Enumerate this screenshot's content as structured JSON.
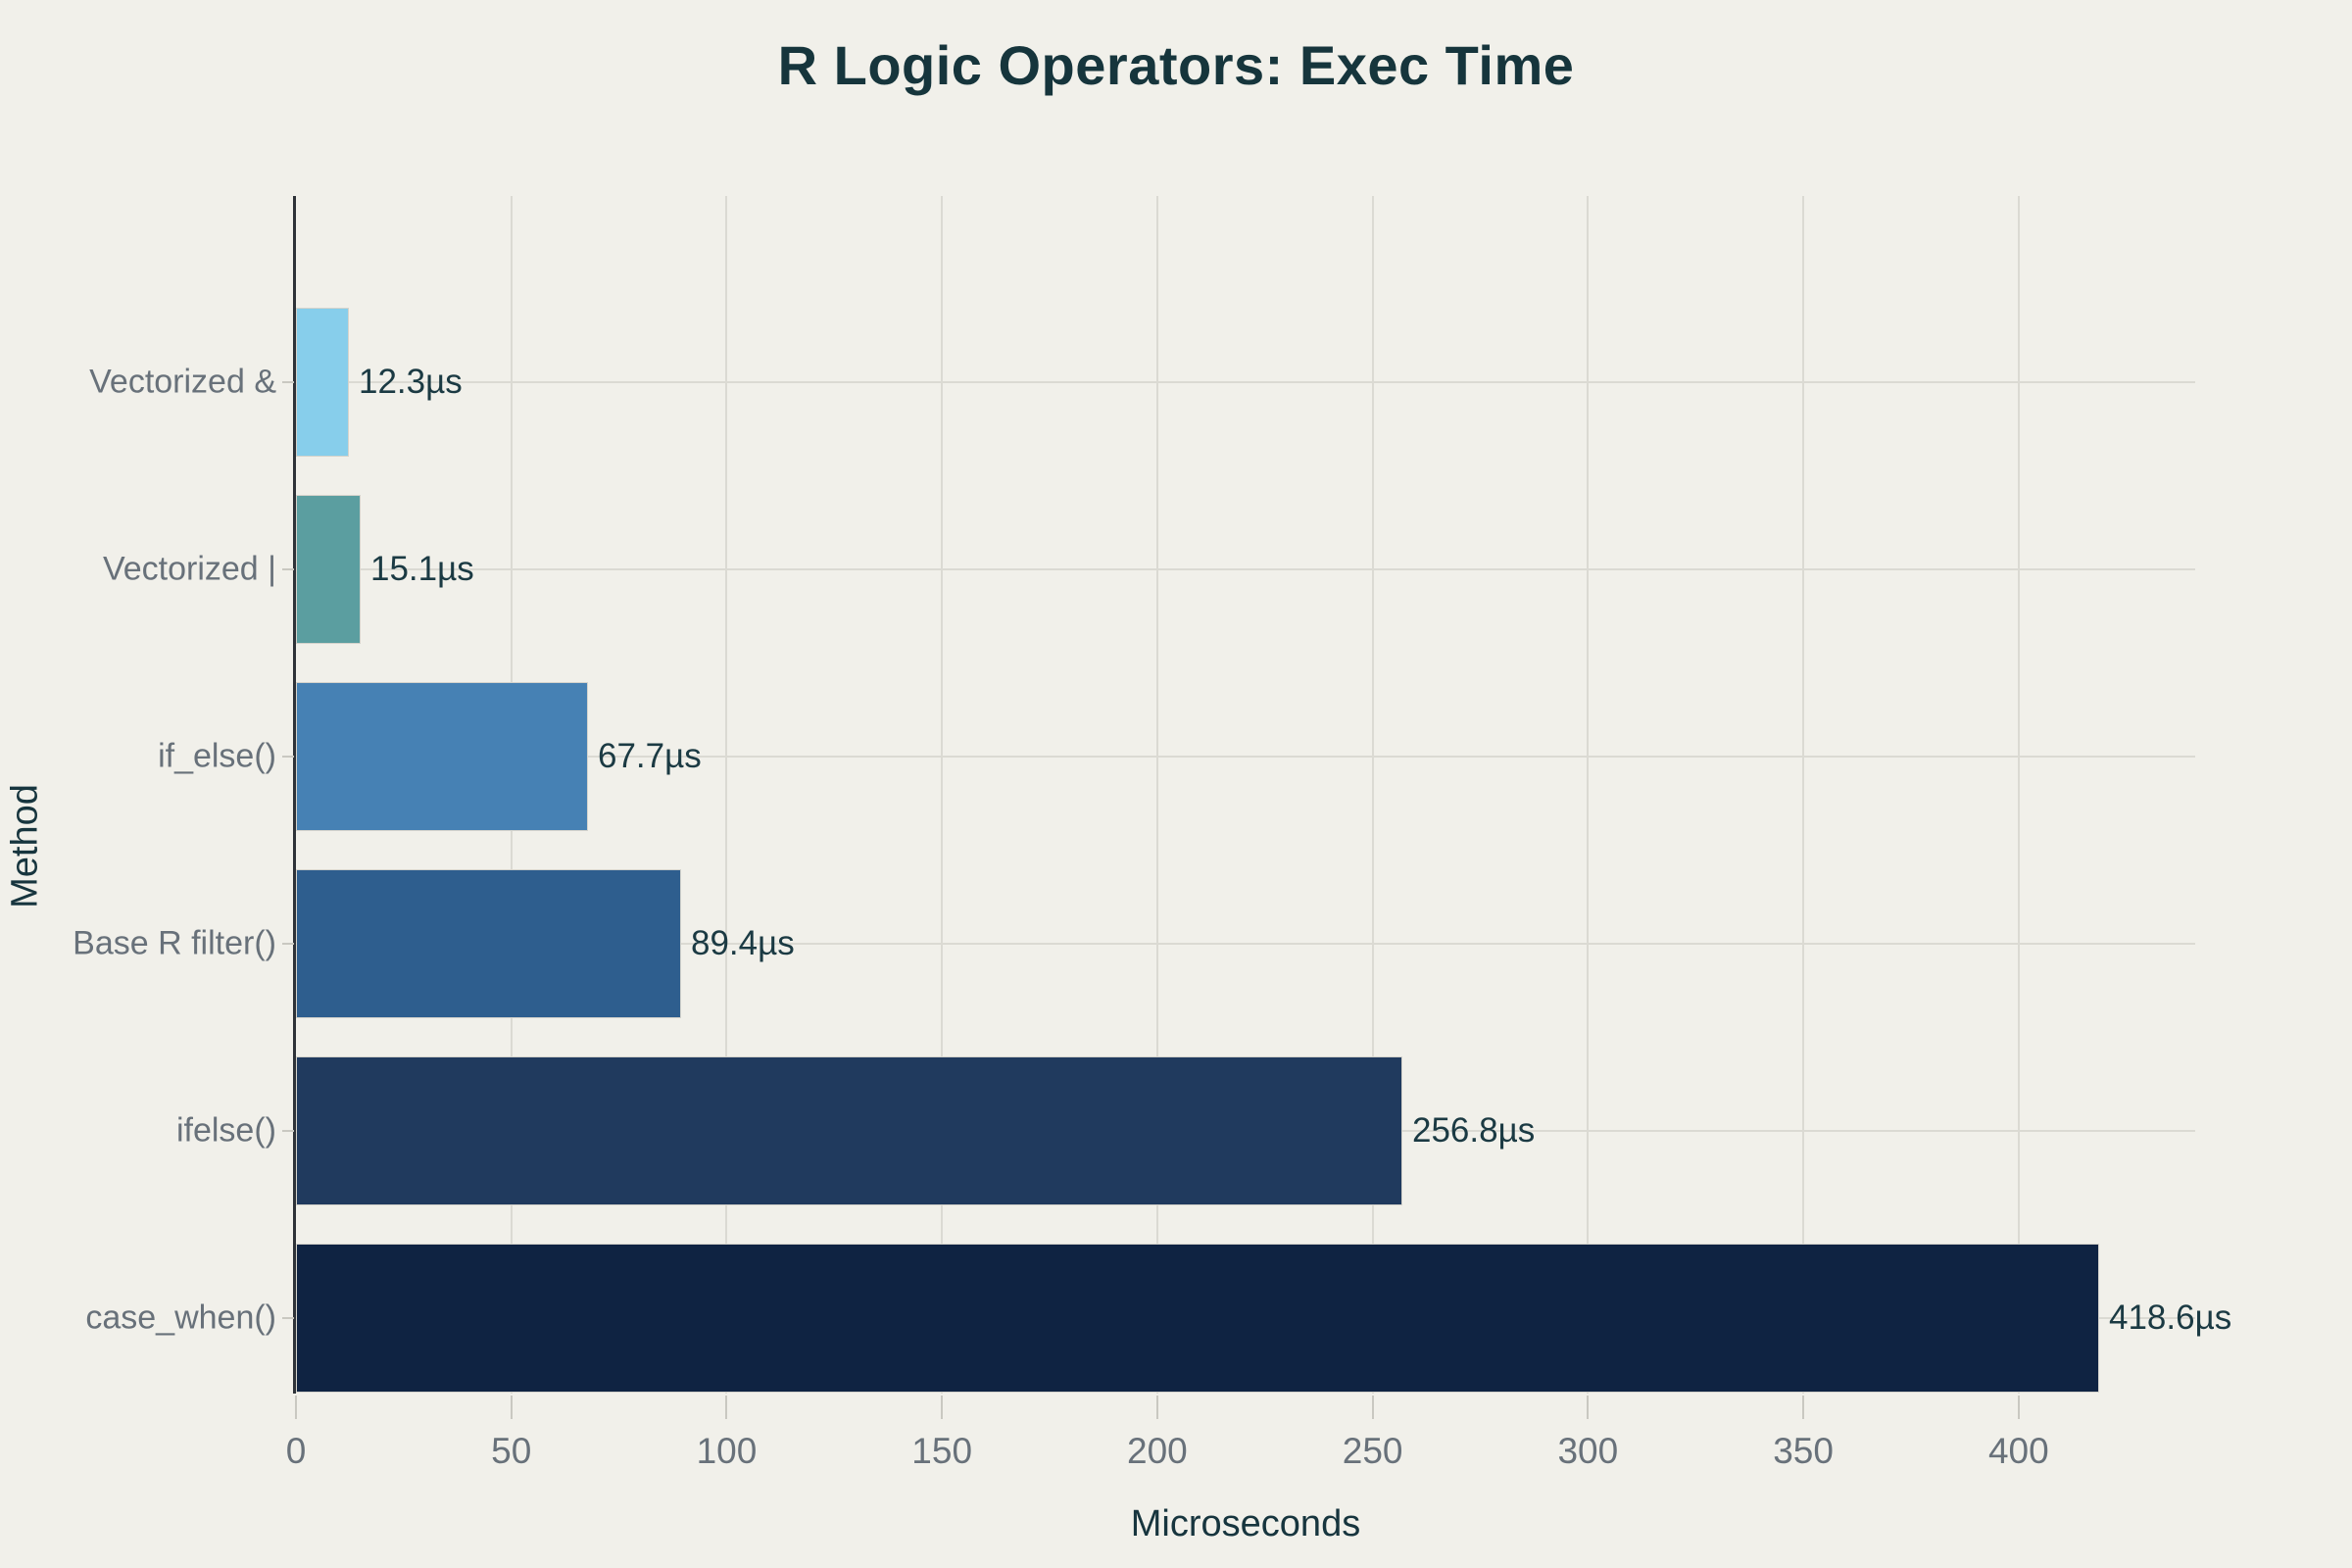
{
  "title": "R Logic Operators: Exec Time",
  "colors": {
    "background": "#f1f0ea",
    "title_text": "#16353c",
    "axis_title_text": "#17353e",
    "value_label_text": "#1b3a43",
    "muted_label_text": "#68717a",
    "gridline": "#dbdad3",
    "axis_line": "#2e3238"
  },
  "chart_data": {
    "type": "bar",
    "orientation": "horizontal",
    "title": "R Logic Operators: Exec Time",
    "xlabel": "Microseconds",
    "ylabel": "Method",
    "categories": [
      "Vectorized &",
      "Vectorized |",
      "if_else()",
      "Base R filter()",
      "ifelse()",
      "case_when()"
    ],
    "values": [
      12.3,
      15.1,
      67.7,
      89.4,
      256.8,
      418.6
    ],
    "value_labels": [
      "12.3µs",
      "15.1µs",
      "67.7µs",
      "89.4µs",
      "256.8µs",
      "418.6µs"
    ],
    "bar_colors": [
      "#87ceeb",
      "#5b9ea0",
      "#4681b4",
      "#2e5e8e",
      "#203a5e",
      "#0f2342"
    ],
    "xticks": [
      0,
      50,
      100,
      150,
      200,
      250,
      300,
      350,
      400
    ],
    "xlim": [
      0,
      441
    ],
    "grid": true,
    "legend": false
  }
}
